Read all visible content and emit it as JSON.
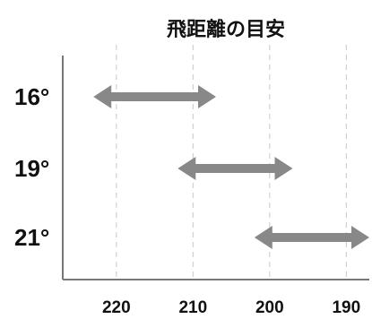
{
  "chart_data": {
    "type": "range-arrows",
    "title": "飛距離の目安",
    "x_ticks": [
      220,
      210,
      200,
      190
    ],
    "xlim": [
      227,
      187
    ],
    "grid": "vertical-dashed",
    "series_color": "#888888",
    "rows": [
      {
        "label": "16°",
        "from": 223,
        "to": 207
      },
      {
        "label": "19°",
        "from": 212,
        "to": 197
      },
      {
        "label": "21°",
        "from": 202,
        "to": 187
      }
    ]
  }
}
